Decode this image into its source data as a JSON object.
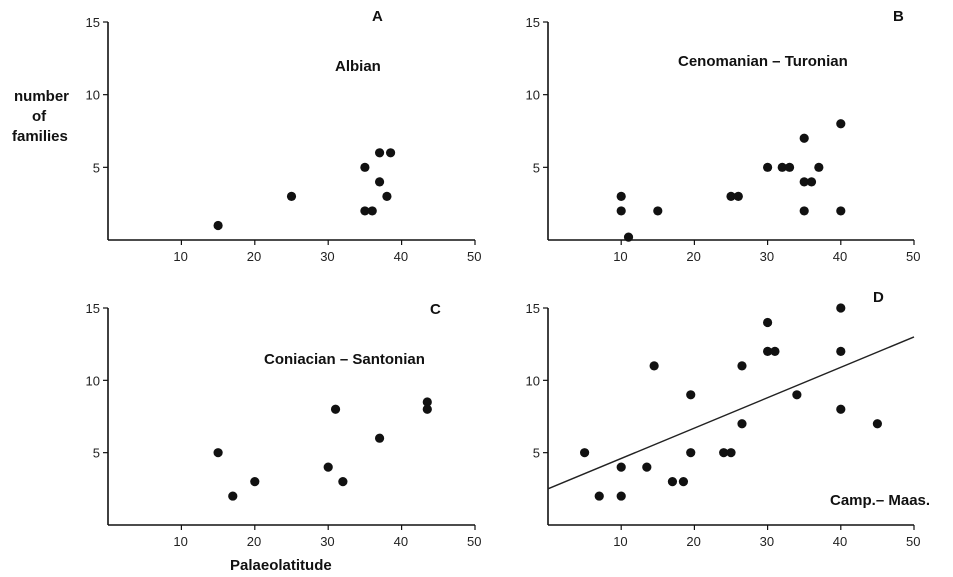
{
  "figure": {
    "ylabel_lines": [
      "number",
      "of",
      "families"
    ],
    "xlabel": "Palaeolatitude"
  },
  "chart_data": [
    {
      "type": "scatter",
      "panel": "A",
      "title": "Albian",
      "xlim": [
        0,
        50
      ],
      "ylim": [
        0,
        15
      ],
      "x_ticks": [
        "10",
        "20",
        "30",
        "40",
        "50"
      ],
      "y_ticks": [
        "5",
        "10",
        "15"
      ],
      "points": [
        {
          "x": 15,
          "y": 1
        },
        {
          "x": 25,
          "y": 3
        },
        {
          "x": 35,
          "y": 2
        },
        {
          "x": 35,
          "y": 5
        },
        {
          "x": 36,
          "y": 2
        },
        {
          "x": 37,
          "y": 4
        },
        {
          "x": 37,
          "y": 6
        },
        {
          "x": 38,
          "y": 3
        },
        {
          "x": 38.5,
          "y": 6
        }
      ]
    },
    {
      "type": "scatter",
      "panel": "B",
      "title": "Cenomanian – Turonian",
      "xlim": [
        0,
        50
      ],
      "ylim": [
        0,
        15
      ],
      "x_ticks": [
        "10",
        "20",
        "30",
        "40",
        "50"
      ],
      "y_ticks": [
        "5",
        "10",
        "15"
      ],
      "points": [
        {
          "x": 10,
          "y": 3
        },
        {
          "x": 10,
          "y": 2
        },
        {
          "x": 11,
          "y": 0.2
        },
        {
          "x": 15,
          "y": 2
        },
        {
          "x": 25,
          "y": 3
        },
        {
          "x": 26,
          "y": 3
        },
        {
          "x": 30,
          "y": 5
        },
        {
          "x": 32,
          "y": 5
        },
        {
          "x": 33,
          "y": 5
        },
        {
          "x": 35,
          "y": 7
        },
        {
          "x": 35,
          "y": 4
        },
        {
          "x": 35,
          "y": 2
        },
        {
          "x": 36,
          "y": 4
        },
        {
          "x": 37,
          "y": 5
        },
        {
          "x": 40,
          "y": 8
        },
        {
          "x": 40,
          "y": 2
        }
      ]
    },
    {
      "type": "scatter",
      "panel": "C",
      "title": "Coniacian – Santonian",
      "xlim": [
        0,
        50
      ],
      "ylim": [
        0,
        15
      ],
      "x_ticks": [
        "10",
        "20",
        "30",
        "40",
        "50"
      ],
      "y_ticks": [
        "5",
        "10",
        "15"
      ],
      "points": [
        {
          "x": 15,
          "y": 5
        },
        {
          "x": 17,
          "y": 2
        },
        {
          "x": 20,
          "y": 3
        },
        {
          "x": 30,
          "y": 4
        },
        {
          "x": 31,
          "y": 8
        },
        {
          "x": 32,
          "y": 3
        },
        {
          "x": 37,
          "y": 6
        },
        {
          "x": 43.5,
          "y": 8.5
        },
        {
          "x": 43.5,
          "y": 8
        }
      ]
    },
    {
      "type": "scatter",
      "panel": "D",
      "title": "Camp.– Maas.",
      "xlim": [
        0,
        50
      ],
      "ylim": [
        0,
        15
      ],
      "x_ticks": [
        "10",
        "20",
        "30",
        "40",
        "50"
      ],
      "y_ticks": [
        "5",
        "10",
        "15"
      ],
      "points": [
        {
          "x": 5,
          "y": 5
        },
        {
          "x": 7,
          "y": 2
        },
        {
          "x": 10,
          "y": 2
        },
        {
          "x": 10,
          "y": 4
        },
        {
          "x": 13.5,
          "y": 4
        },
        {
          "x": 14.5,
          "y": 11
        },
        {
          "x": 17,
          "y": 3
        },
        {
          "x": 18.5,
          "y": 3
        },
        {
          "x": 19.5,
          "y": 9
        },
        {
          "x": 19.5,
          "y": 5
        },
        {
          "x": 24,
          "y": 5
        },
        {
          "x": 25,
          "y": 5
        },
        {
          "x": 26.5,
          "y": 7
        },
        {
          "x": 26.5,
          "y": 11
        },
        {
          "x": 30,
          "y": 12
        },
        {
          "x": 30,
          "y": 14
        },
        {
          "x": 31,
          "y": 12
        },
        {
          "x": 34,
          "y": 9
        },
        {
          "x": 40,
          "y": 15
        },
        {
          "x": 40,
          "y": 12
        },
        {
          "x": 40,
          "y": 8
        },
        {
          "x": 45,
          "y": 7
        }
      ],
      "trend_line": {
        "x": [
          0,
          50
        ],
        "y": [
          2.5,
          13
        ]
      }
    }
  ]
}
